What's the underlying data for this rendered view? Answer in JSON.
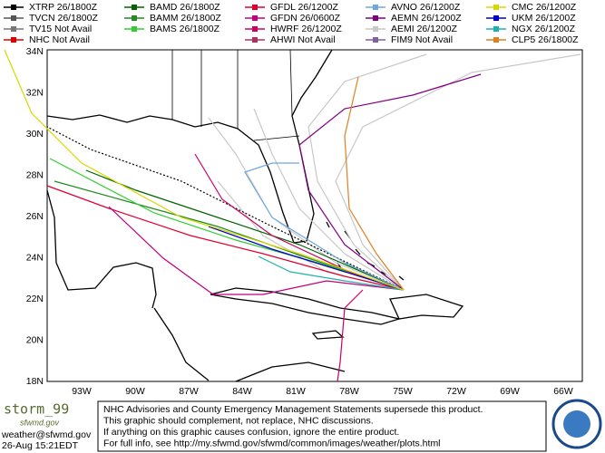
{
  "legend": {
    "columns": [
      [
        {
          "text": "XTRP 26/1800Z",
          "color": "#000000"
        },
        {
          "text": "TVCN 26/1800Z",
          "color": "#555555"
        },
        {
          "text": "TV15 Not Avail",
          "color": "#777777"
        },
        {
          "text": "NHC Not Avail",
          "color": "#e00000"
        }
      ],
      [
        {
          "text": "BAMD 26/1800Z",
          "color": "#006400"
        },
        {
          "text": "BAMM 26/1800Z",
          "color": "#228b22"
        },
        {
          "text": "BAMS 26/1800Z",
          "color": "#32cd32"
        }
      ],
      [
        {
          "text": "GFDL 26/1200Z",
          "color": "#e00030"
        },
        {
          "text": "GFDN 26/0600Z",
          "color": "#c0007f"
        },
        {
          "text": "HWRF 26/1200Z",
          "color": "#cc0066"
        },
        {
          "text": "AHWI Not Avail",
          "color": "#b03060"
        }
      ],
      [
        {
          "text": "AVNO 26/1200Z",
          "color": "#6fa8dc"
        },
        {
          "text": "AEMN 26/1200Z",
          "color": "#800080"
        },
        {
          "text": "AEMI 26/1200Z",
          "color": "#c8c8c8"
        },
        {
          "text": "FIM9 Not Avail",
          "color": "#8060a0"
        }
      ],
      [
        {
          "text": "CMC 26/1200Z",
          "color": "#d8d800"
        },
        {
          "text": "UKM 26/1200Z",
          "color": "#0000cc"
        },
        {
          "text": "NGX 26/1200Z",
          "color": "#20b2aa"
        },
        {
          "text": "CLP5 26/1800Z",
          "color": "#e08020"
        }
      ]
    ]
  },
  "map": {
    "lat_labels": [
      "34N",
      "32N",
      "30N",
      "28N",
      "26N",
      "24N",
      "22N",
      "20N",
      "18N"
    ],
    "lon_labels": [
      "93W",
      "90W",
      "87W",
      "84W",
      "81W",
      "78W",
      "75W",
      "72W",
      "69W",
      "66W"
    ]
  },
  "footer": {
    "logo": "storm_99",
    "site": "sfwmd.gov",
    "email": "weather@sfwmd.gov",
    "timestamp": "26-Aug 15:21EDT",
    "notice": [
      "NHC Advisories and County Emergency Management Statements supersede this product.",
      "This graphic should complement, not replace, NHC discussions.",
      "If anything on this graphic causes confusion, ignore the entire product.",
      "For full info, see  http://my.sfwmd.gov/sfwmd/common/images/weather/plots.html"
    ]
  }
}
